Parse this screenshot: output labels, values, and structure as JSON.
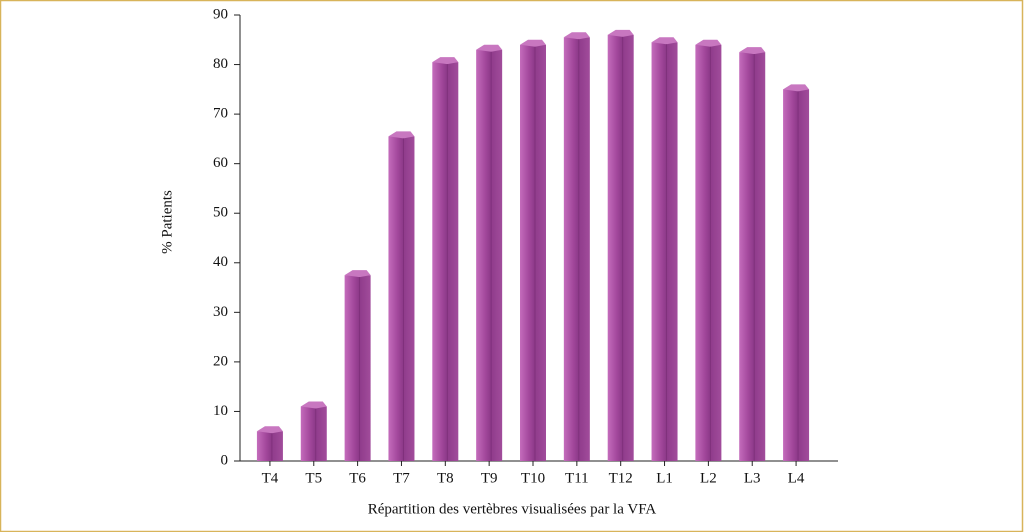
{
  "chart_data": {
    "type": "bar",
    "y_label": "% Patients",
    "x_label": "Répartition des vertèbres visualisées par la VFA",
    "categories": [
      "T4",
      "T5",
      "T6",
      "T7",
      "T8",
      "T9",
      "T10",
      "T11",
      "T12",
      "L1",
      "L2",
      "L3",
      "L4"
    ],
    "values": [
      6,
      11,
      37.5,
      65.5,
      80.5,
      83,
      84,
      85.5,
      86,
      84.5,
      84,
      82.5,
      75
    ],
    "color": "#a3489c",
    "ylim": [
      0,
      90
    ],
    "yticks": [
      0,
      10,
      20,
      30,
      40,
      50,
      60,
      70,
      80,
      90
    ],
    "grid": false
  }
}
